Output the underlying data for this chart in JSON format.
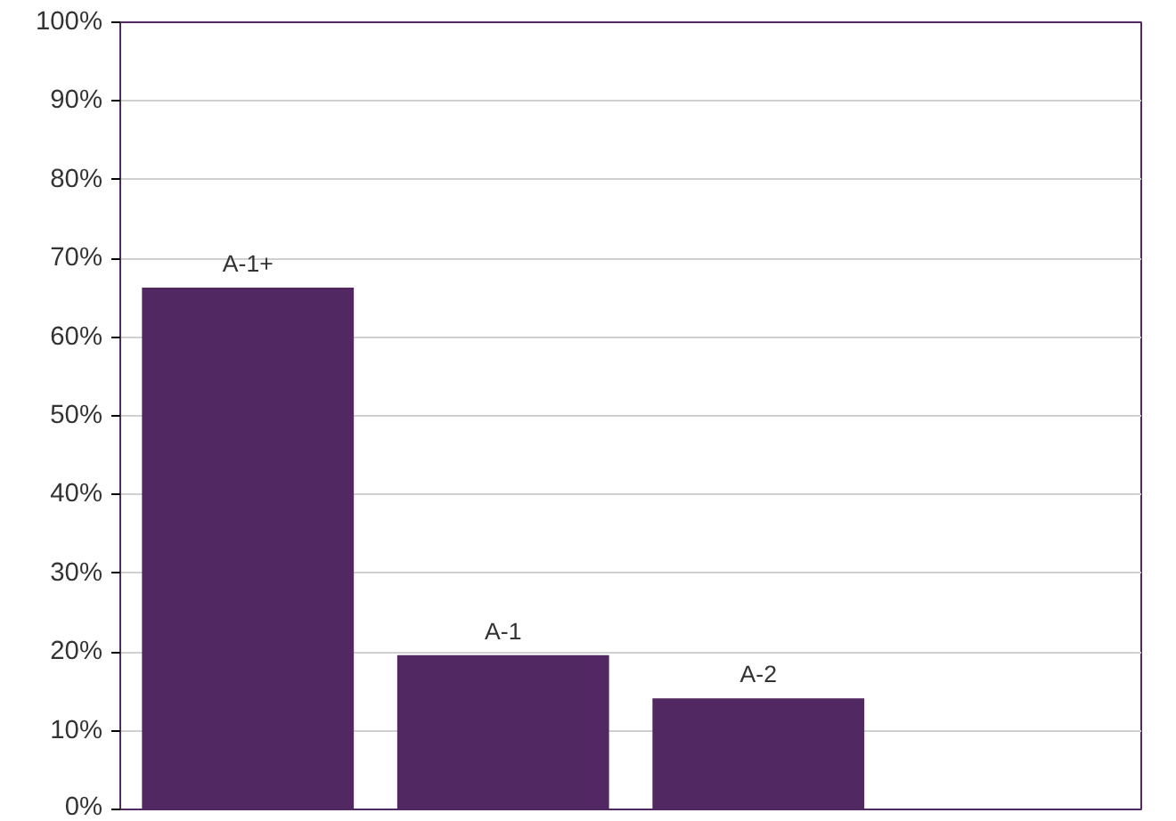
{
  "chart_data": {
    "type": "bar",
    "categories": [
      "A-1+",
      "A-1",
      "A-2",
      null
    ],
    "series": [
      {
        "color": "#522862",
        "values": [
          66.3,
          19.6,
          14.1,
          null
        ]
      }
    ],
    "ylim": [
      0,
      100
    ],
    "yticks": [
      {
        "value": 0,
        "label": "0%"
      },
      {
        "value": 10,
        "label": "10%"
      },
      {
        "value": 20,
        "label": "20%"
      },
      {
        "value": 30,
        "label": "30%"
      },
      {
        "value": 40,
        "label": "40%"
      },
      {
        "value": 50,
        "label": "50%"
      },
      {
        "value": 60,
        "label": "60%"
      },
      {
        "value": 70,
        "label": "70%"
      },
      {
        "value": 80,
        "label": "80%"
      },
      {
        "value": 90,
        "label": "90%"
      },
      {
        "value": 100,
        "label": "100%"
      }
    ],
    "grid": "y",
    "tick_labels": "y"
  }
}
